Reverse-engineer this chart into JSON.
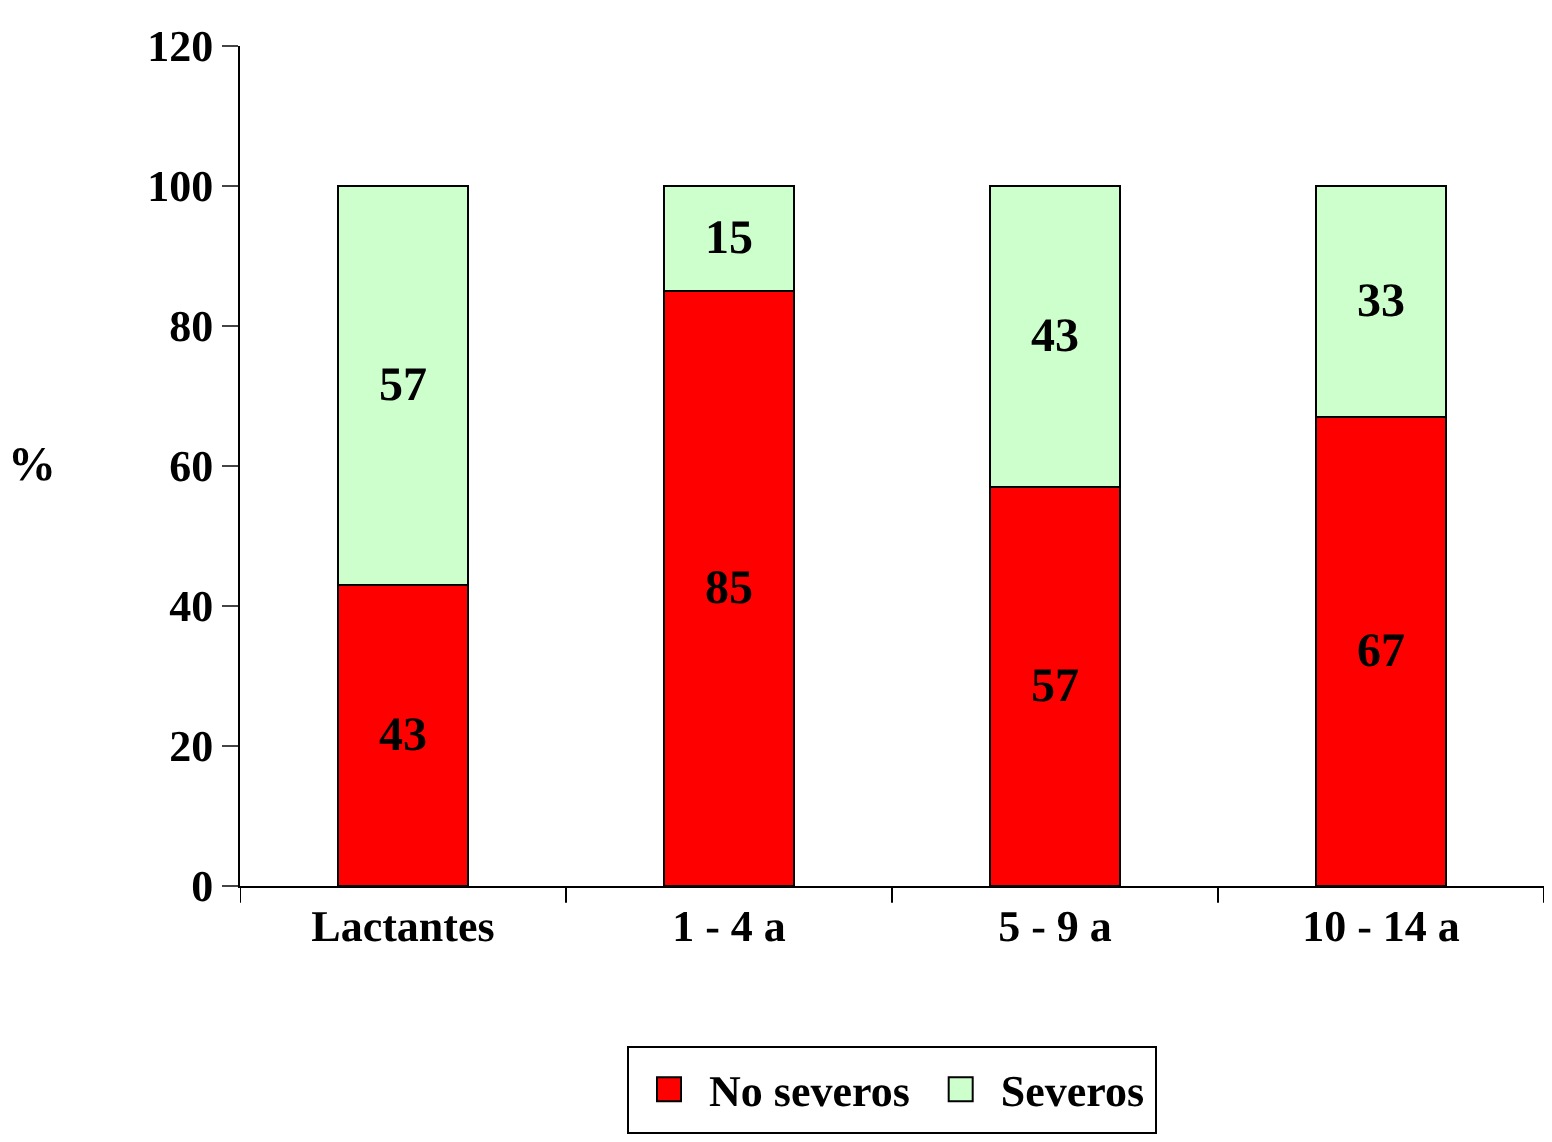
{
  "chart_data": {
    "type": "bar",
    "stacked": true,
    "ylabel": "%",
    "categories": [
      "Lactantes",
      "1 - 4 a",
      "5 - 9 a",
      "10 - 14 a"
    ],
    "series": [
      {
        "name": "No severos",
        "color": "#ff0000",
        "values": [
          43,
          85,
          57,
          67
        ]
      },
      {
        "name": "Severos",
        "color": "#ccffcc",
        "values": [
          57,
          15,
          43,
          33
        ]
      }
    ],
    "ylim": [
      0,
      120
    ],
    "yticks": [
      0,
      20,
      40,
      60,
      80,
      100,
      120
    ],
    "data_labels": true,
    "legend": "bottom"
  }
}
